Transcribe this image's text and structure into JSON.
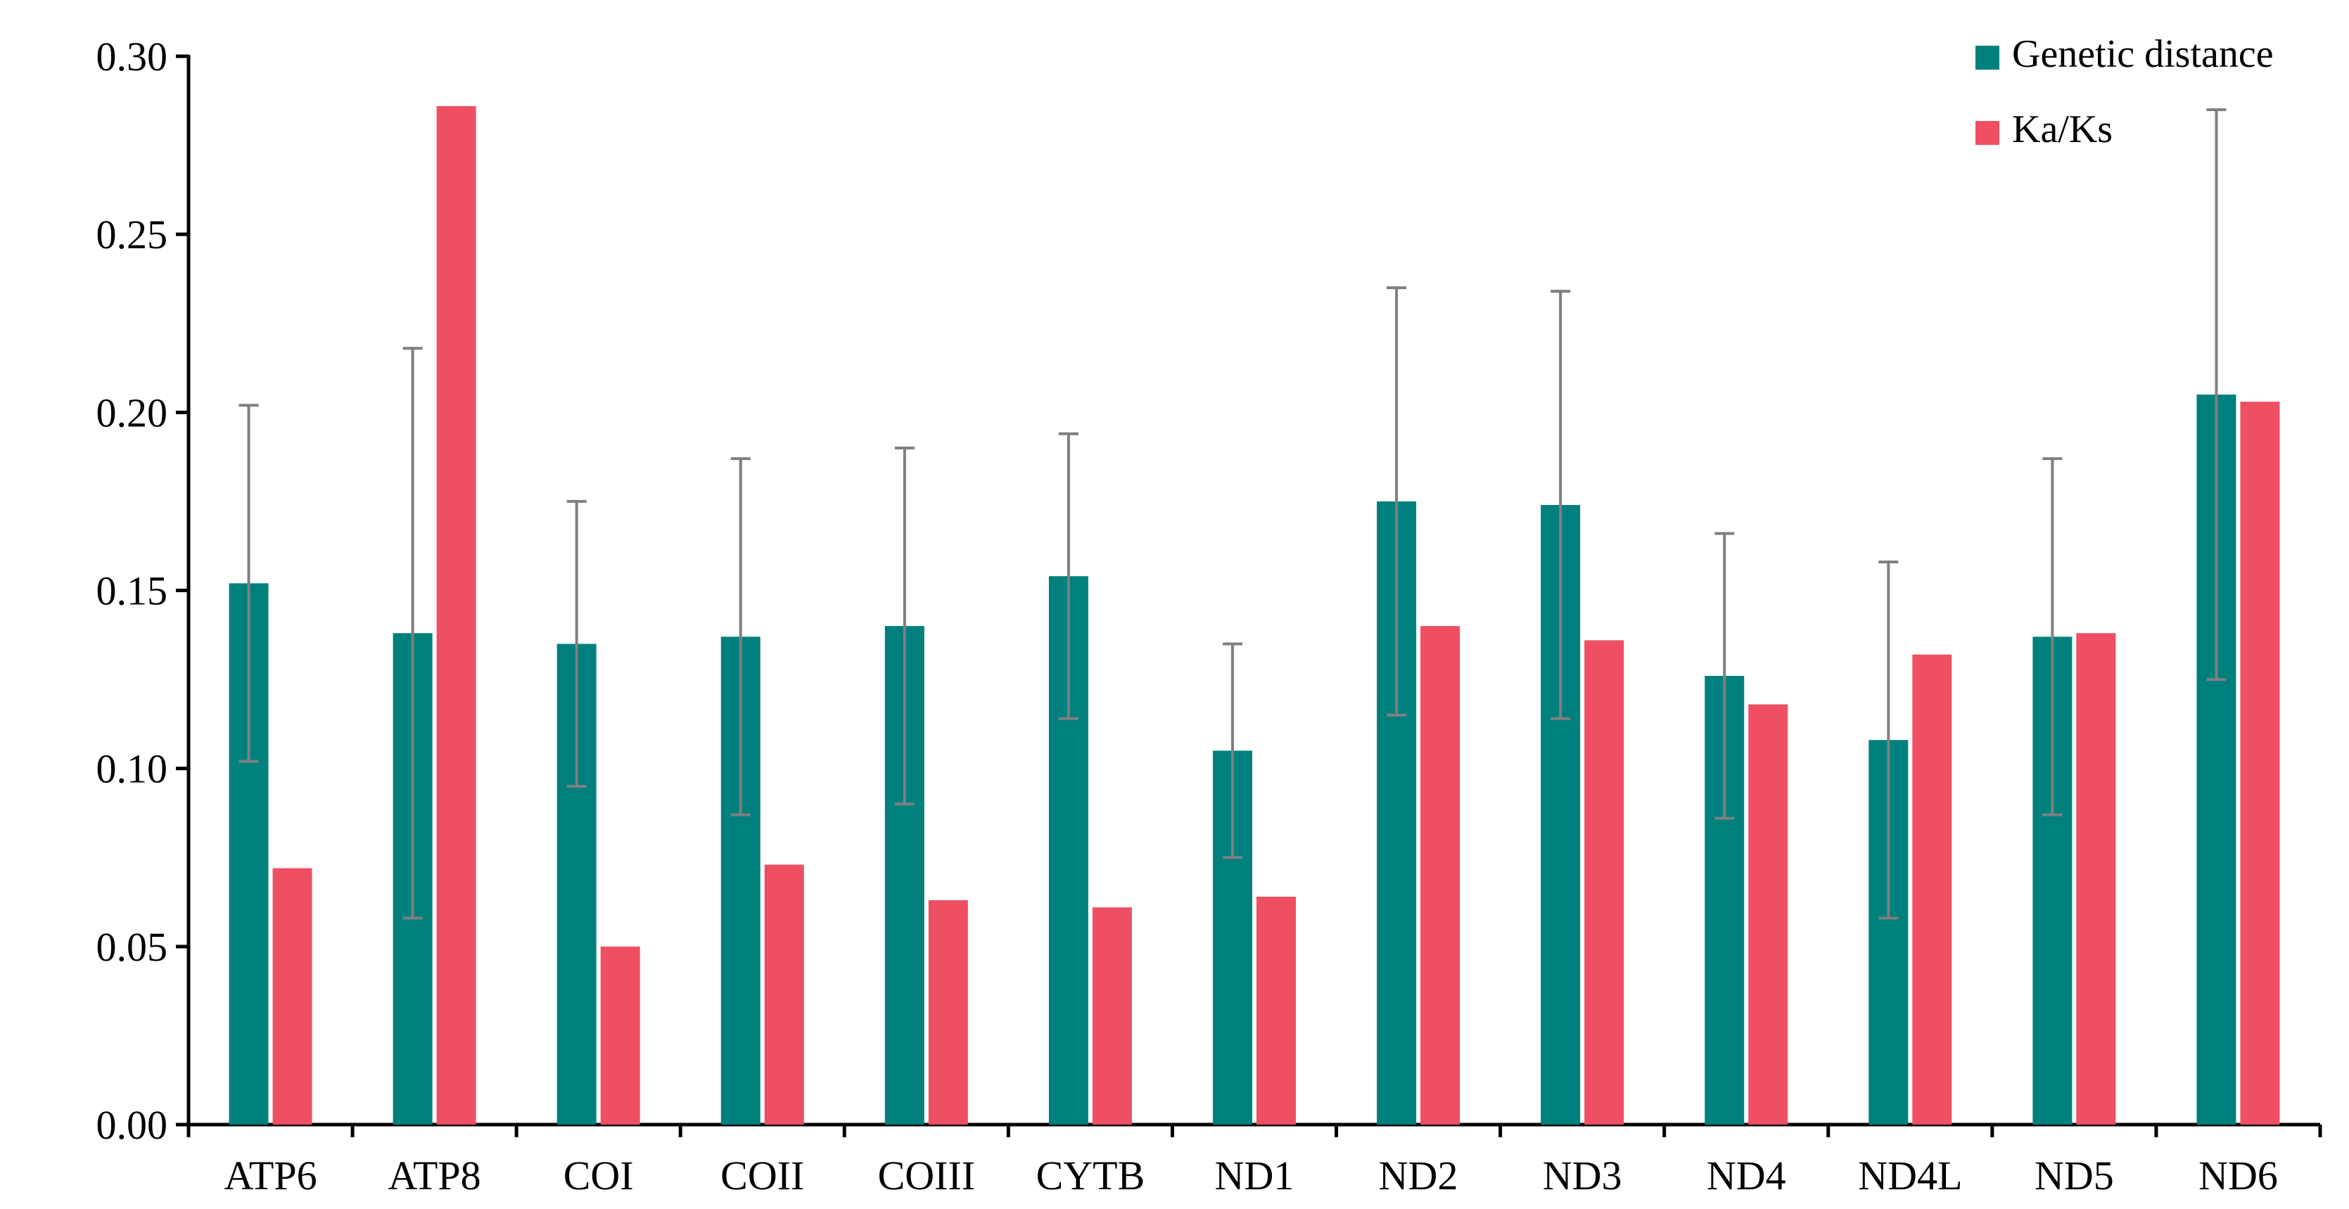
{
  "chart_data": {
    "type": "bar",
    "categories": [
      "ATP6",
      "ATP8",
      "COI",
      "COII",
      "COIII",
      "CYTB",
      "ND1",
      "ND2",
      "ND3",
      "ND4",
      "ND4L",
      "ND5",
      "ND6"
    ],
    "series": [
      {
        "name": "Genetic distance",
        "color": "#00807c",
        "values": [
          0.152,
          0.138,
          0.135,
          0.137,
          0.14,
          0.154,
          0.105,
          0.175,
          0.174,
          0.126,
          0.108,
          0.137,
          0.205
        ],
        "error": [
          0.05,
          0.08,
          0.04,
          0.05,
          0.05,
          0.04,
          0.03,
          0.06,
          0.06,
          0.04,
          0.05,
          0.05,
          0.08
        ]
      },
      {
        "name": "Ka/Ks",
        "color": "#ee4f62",
        "values": [
          0.072,
          0.286,
          0.05,
          0.073,
          0.063,
          0.061,
          0.064,
          0.14,
          0.136,
          0.118,
          0.132,
          0.138,
          0.203
        ]
      }
    ],
    "ylim": [
      0,
      0.3
    ],
    "yticks": [
      "0.00",
      "0.05",
      "0.10",
      "0.15",
      "0.20",
      "0.25",
      "0.30"
    ],
    "error_bar_color": "#7f7f7f",
    "grid": false,
    "legend_position": "top-right",
    "title": "",
    "xlabel": "",
    "ylabel": ""
  }
}
